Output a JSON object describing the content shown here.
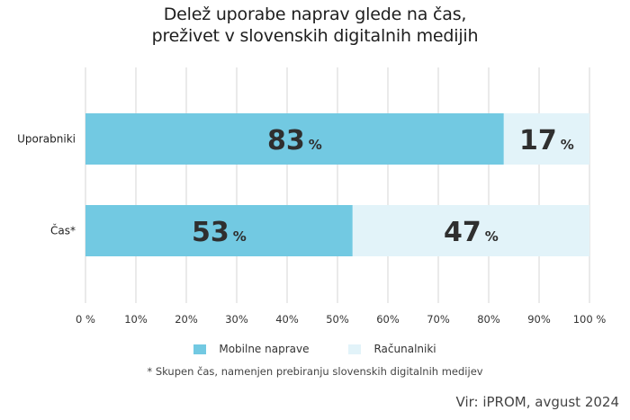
{
  "chart_data": {
    "type": "bar",
    "orientation": "horizontal",
    "stacked": true,
    "title": "Delež uporabe naprav glede na čas,\npreživet v slovenskih digitalnih medijih",
    "title_lines": [
      "Delež uporabe naprav glede na čas,",
      "preživet v slovenskih digitalnih medijih"
    ],
    "categories": [
      "Uporabniki",
      "Čas*"
    ],
    "series": [
      {
        "name": "Mobilne naprave",
        "values": [
          83,
          53
        ],
        "color": "#72c9e2"
      },
      {
        "name": "Računalniki",
        "values": [
          17,
          47
        ],
        "color": "#e2f3f9"
      }
    ],
    "data_labels": [
      [
        "83",
        "17"
      ],
      [
        "53",
        "47"
      ]
    ],
    "label_suffix": "%",
    "xlim": [
      0,
      100
    ],
    "xticks": [
      0,
      10,
      20,
      30,
      40,
      50,
      60,
      70,
      80,
      90,
      100
    ],
    "xtick_labels": [
      "0 %",
      "10%",
      "20%",
      "30%",
      "40%",
      "50%",
      "60%",
      "70%",
      "80%",
      "90%",
      "100 %"
    ],
    "grid": true,
    "legend_position": "bottom",
    "xlabel": "",
    "ylabel": ""
  },
  "legend": [
    {
      "label": "Mobilne naprave",
      "color": "#72c9e2"
    },
    {
      "label": "Računalniki",
      "color": "#e2f3f9"
    }
  ],
  "footnote": "* Skupen čas, namenjen prebiranju slovenskih digitalnih medijev",
  "source": "Vir: iPROM, avgust 2024"
}
